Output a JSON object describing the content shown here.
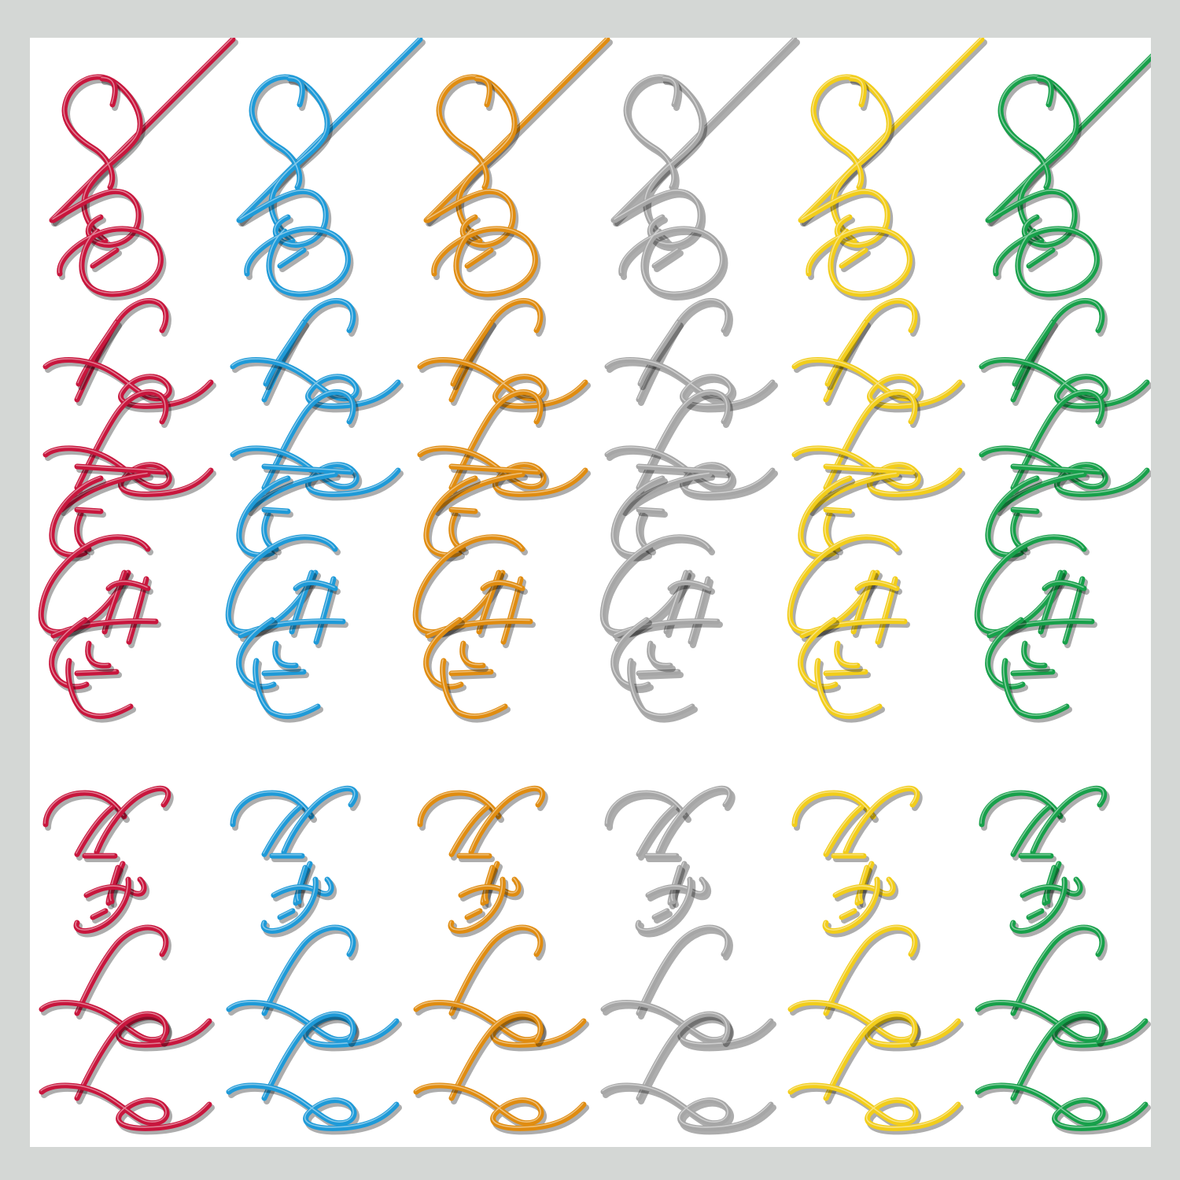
{
  "artwork": {
    "words": [
      "SLEGE",
      "HYLL"
    ],
    "columns": [
      {
        "color": "#c8163d"
      },
      {
        "color": "#1e9ad8"
      },
      {
        "color": "#e08c10"
      },
      {
        "color": "#a6a6a6"
      },
      {
        "color": "#f2cd1a"
      },
      {
        "color": "#17a04a"
      }
    ],
    "frame_color": "#d4d7d5",
    "background_color": "#ffffff"
  }
}
